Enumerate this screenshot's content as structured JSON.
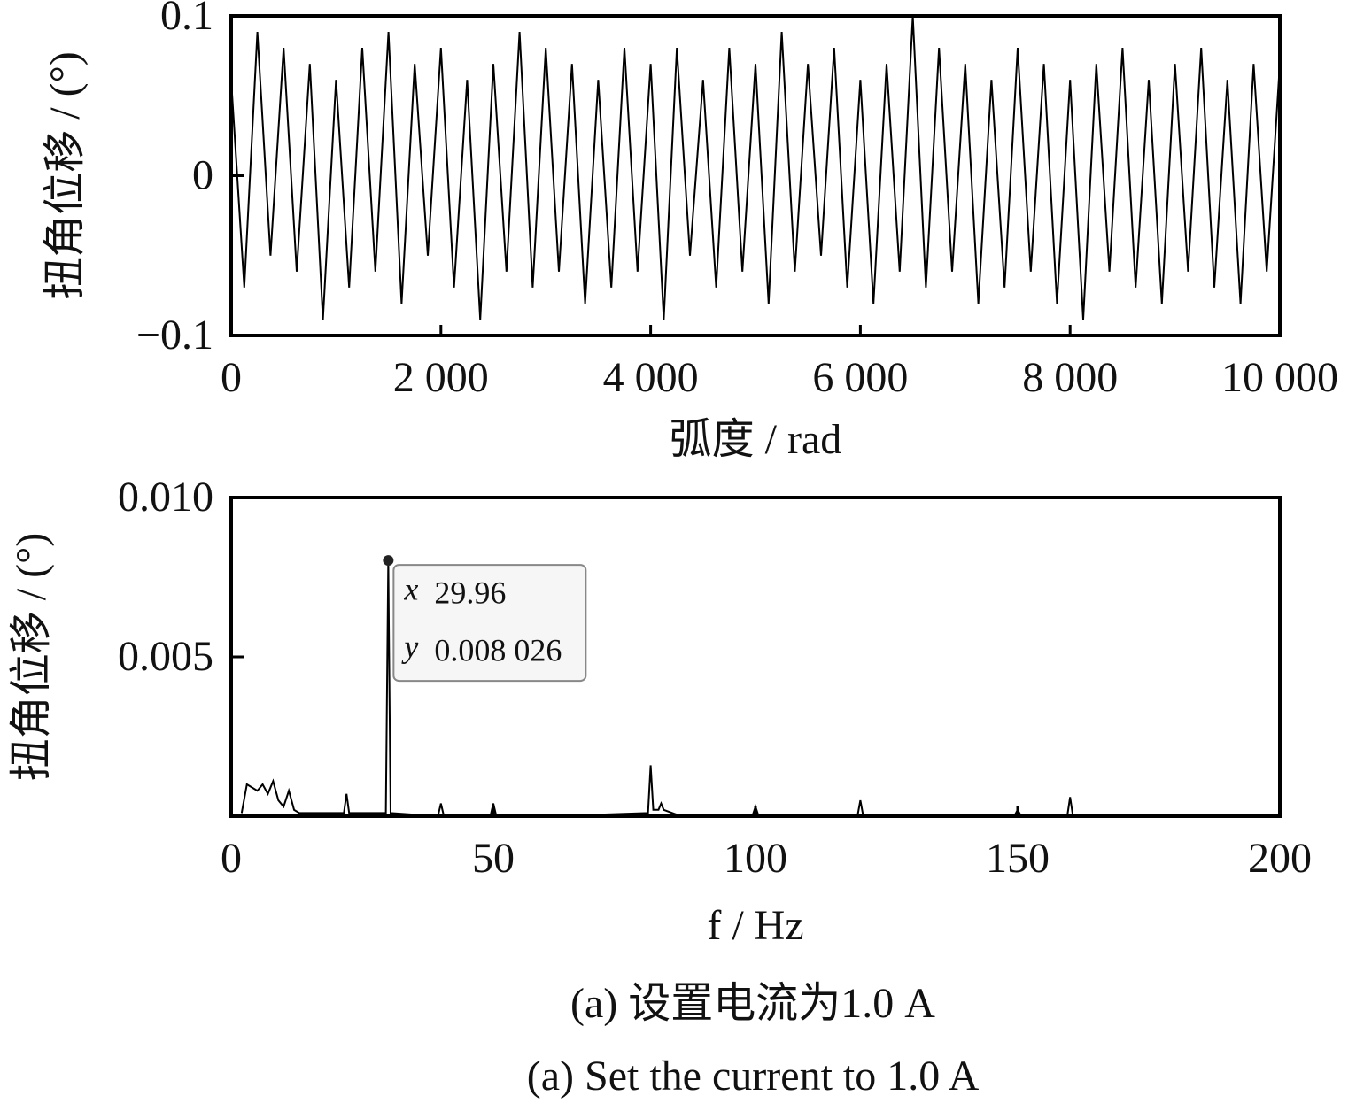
{
  "chart_data": [
    {
      "type": "line",
      "ylabel": "扭角位移 / (°)",
      "xlabel": "弧度 / rad",
      "x": [
        0,
        125,
        250,
        375,
        500,
        625,
        750,
        875,
        1000,
        1125,
        1250,
        1375,
        1500,
        1625,
        1750,
        1875,
        2000,
        2125,
        2250,
        2375,
        2500,
        2625,
        2750,
        2875,
        3000,
        3125,
        3250,
        3375,
        3500,
        3625,
        3750,
        3875,
        4000,
        4125,
        4250,
        4375,
        4500,
        4625,
        4750,
        4875,
        5000,
        5125,
        5250,
        5375,
        5500,
        5625,
        5750,
        5875,
        6000,
        6125,
        6250,
        6375,
        6500,
        6625,
        6750,
        6875,
        7000,
        7125,
        7250,
        7375,
        7500,
        7625,
        7750,
        7875,
        8000,
        8125,
        8250,
        8375,
        8500,
        8625,
        8750,
        8875,
        9000,
        9125,
        9250,
        9375,
        9500,
        9625,
        9750,
        9875,
        10000
      ],
      "series": [
        {
          "color": "#000000",
          "values": [
            0.06,
            -0.07,
            0.09,
            -0.05,
            0.08,
            -0.06,
            0.07,
            -0.09,
            0.06,
            -0.07,
            0.08,
            -0.06,
            0.09,
            -0.08,
            0.07,
            -0.05,
            0.08,
            -0.07,
            0.06,
            -0.09,
            0.07,
            -0.06,
            0.09,
            -0.07,
            0.08,
            -0.06,
            0.07,
            -0.08,
            0.06,
            -0.07,
            0.08,
            -0.06,
            0.07,
            -0.09,
            0.08,
            -0.05,
            0.06,
            -0.07,
            0.08,
            -0.06,
            0.07,
            -0.08,
            0.09,
            -0.06,
            0.07,
            -0.05,
            0.08,
            -0.07,
            0.06,
            -0.08,
            0.07,
            -0.06,
            0.1,
            -0.07,
            0.08,
            -0.06,
            0.07,
            -0.08,
            0.06,
            -0.07,
            0.08,
            -0.06,
            0.07,
            -0.08,
            0.06,
            -0.09,
            0.07,
            -0.06,
            0.08,
            -0.07,
            0.06,
            -0.08,
            0.07,
            -0.06,
            0.08,
            -0.07,
            0.06,
            -0.08,
            0.07,
            -0.06,
            0.07
          ]
        }
      ],
      "xlim": [
        0,
        10000
      ],
      "xticks": [
        0,
        {
          "value": 2000,
          "label": "2 000"
        },
        {
          "value": 4000,
          "label": "4 000"
        },
        {
          "value": 6000,
          "label": "6 000"
        },
        {
          "value": 8000,
          "label": "8 000"
        },
        {
          "value": 10000,
          "label": "10 000"
        }
      ],
      "ylim": [
        -0.1,
        0.1
      ],
      "yticks": [
        {
          "value": -0.1,
          "label": "−0.1"
        },
        0,
        0.1
      ]
    },
    {
      "type": "line",
      "ylabel": "扭角位移 / (°)",
      "xlabel": "f / Hz",
      "x": [
        2,
        3,
        4,
        5,
        6,
        7,
        8,
        9,
        10,
        11,
        12,
        13,
        14,
        15,
        18,
        21,
        21.5,
        22,
        22.5,
        25,
        29.5,
        29.96,
        30.4,
        35,
        39.5,
        40,
        40.5,
        45,
        49.5,
        50,
        50.5,
        60,
        70,
        79.5,
        80,
        80.5,
        81.5,
        82,
        82.5,
        85,
        99.5,
        100,
        100.5,
        110,
        119.5,
        120,
        120.5,
        140,
        149.5,
        150,
        150.5,
        159.5,
        160,
        160.5,
        180,
        200
      ],
      "series": [
        {
          "color": "#000000",
          "values": [
            0.0001,
            0.001,
            0.0009,
            0.0008,
            0.001,
            0.0007,
            0.0011,
            0.0005,
            0.0003,
            0.0008,
            0.0002,
            0.0001,
            0.0001,
            0.0001,
            0.0001,
            0.0001,
            0.0001,
            0.0007,
            0.0001,
            0.0001,
            0.0001,
            0.008026,
            0.0001,
            5e-05,
            5e-05,
            0.0004,
            5e-05,
            5e-05,
            5e-05,
            0.0004,
            5e-05,
            5e-05,
            5e-05,
            0.0001,
            0.0016,
            0.0002,
            0.0002,
            0.0004,
            0.0002,
            5e-05,
            5e-05,
            0.0003,
            5e-05,
            5e-05,
            5e-05,
            0.0005,
            5e-05,
            5e-05,
            5e-05,
            0.0002,
            5e-05,
            5e-05,
            0.0006,
            5e-05,
            5e-05,
            5e-05
          ]
        }
      ],
      "xlim": [
        0,
        200
      ],
      "xticks": [
        0,
        50,
        100,
        150,
        200
      ],
      "ylim": [
        0,
        0.01
      ],
      "yticks": [
        0.005,
        {
          "value": 0.01,
          "label": "0.010"
        }
      ],
      "annotation": {
        "x_name": "x",
        "x": 29.96,
        "x_label": "29.96",
        "y_name": "y",
        "y": 0.008026,
        "y_label": "0.008 026"
      }
    }
  ],
  "captions": [
    "(a)  设置电流为1.0 A",
    "(a)  Set the current to 1.0 A"
  ]
}
